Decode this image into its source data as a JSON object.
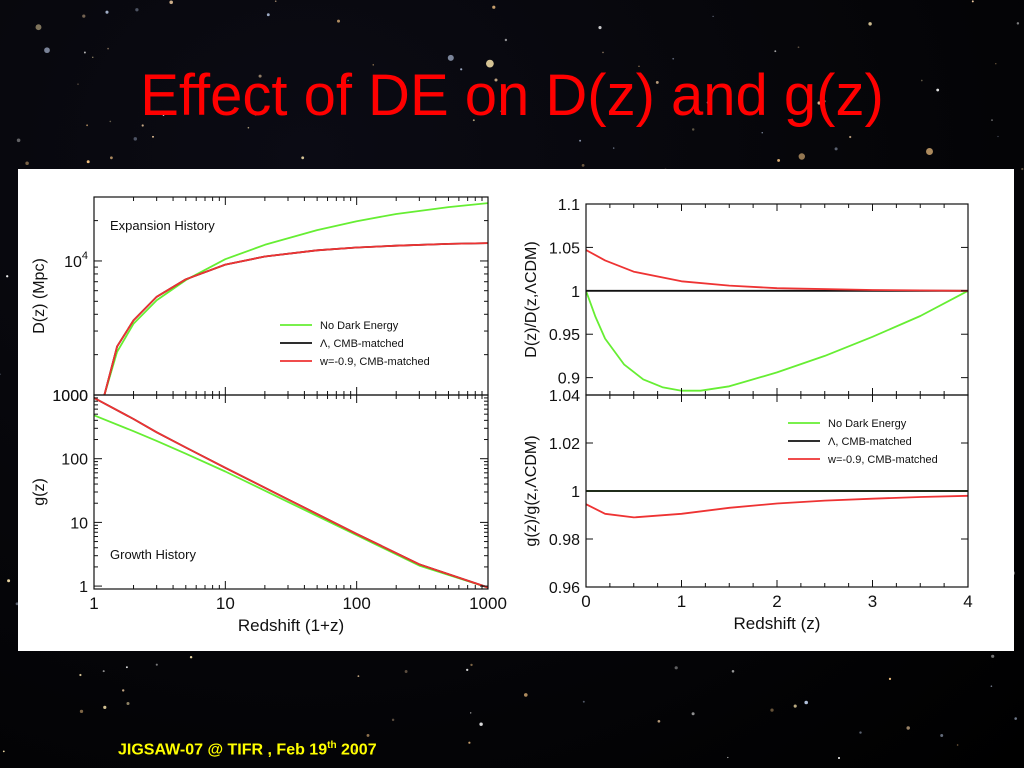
{
  "slide": {
    "title": "Effect of DE on D(z) and g(z)",
    "footer_main": "JIGSAW-07 @ TIFR , Feb 19",
    "footer_sup": "th",
    "footer_year": " 2007",
    "title_color": "#ff0000",
    "footer_color": "#ffff00"
  },
  "chart_data": [
    {
      "id": "expansion",
      "type": "line",
      "annotation": "Expansion History",
      "ylabel": "D(z) (Mpc)",
      "xlabel": "",
      "xscale": "log",
      "yscale": "log",
      "xlim": [
        1,
        1000
      ],
      "ylim": [
        1000,
        30000
      ],
      "yticks": [
        {
          "v": 10000,
          "base": "10",
          "exp": "4"
        },
        {
          "v": 1000,
          "label": "1000"
        }
      ],
      "legend_position": "center-right",
      "series": [
        {
          "name": "No Dark Energy",
          "color": "#66ee33",
          "x": [
            1.2,
            1.5,
            2,
            3,
            5,
            10,
            20,
            50,
            100,
            200,
            500,
            1000
          ],
          "y": [
            1000,
            2100,
            3400,
            5100,
            7200,
            10300,
            13200,
            17000,
            19800,
            22400,
            25200,
            27000
          ]
        },
        {
          "name": "Λ, CMB-matched",
          "color": "#111111",
          "x": [
            1.2,
            1.5,
            2,
            3,
            5,
            10,
            20,
            50,
            100,
            200,
            500,
            1000
          ],
          "y": [
            1000,
            2300,
            3600,
            5400,
            7300,
            9400,
            10800,
            12000,
            12600,
            13000,
            13400,
            13600
          ]
        },
        {
          "name": "w=-0.9, CMB-matched",
          "color": "#ee3333",
          "x": [
            1.2,
            1.5,
            2,
            3,
            5,
            10,
            20,
            50,
            100,
            200,
            500,
            1000
          ],
          "y": [
            1000,
            2300,
            3600,
            5400,
            7300,
            9400,
            10800,
            12000,
            12600,
            13000,
            13400,
            13600
          ]
        }
      ]
    },
    {
      "id": "growth",
      "type": "line",
      "annotation": "Growth History",
      "ylabel": "g(z)",
      "xlabel": "Redshift (1+z)",
      "xscale": "log",
      "yscale": "log",
      "xlim": [
        1,
        1000
      ],
      "ylim": [
        0.9,
        1000
      ],
      "xticks": [
        {
          "v": 1,
          "label": "1"
        },
        {
          "v": 10,
          "label": "10"
        },
        {
          "v": 100,
          "label": "100"
        },
        {
          "v": 1000,
          "label": "1000"
        }
      ],
      "yticks": [
        {
          "v": 1000,
          "label": "1000"
        },
        {
          "v": 100,
          "label": "100"
        },
        {
          "v": 10,
          "label": "10"
        },
        {
          "v": 1,
          "label": "1"
        }
      ],
      "series": [
        {
          "name": "No Dark Energy",
          "color": "#66ee33",
          "x": [
            1,
            2,
            3,
            5,
            10,
            30,
            100,
            300,
            1000
          ],
          "y": [
            480,
            270,
            190,
            120,
            63,
            21,
            6.3,
            2.1,
            0.95
          ]
        },
        {
          "name": "Λ, CMB-matched",
          "color": "#111111",
          "x": [
            1,
            2,
            3,
            5,
            10,
            30,
            100,
            300,
            1000
          ],
          "y": [
            900,
            420,
            260,
            150,
            72,
            23,
            6.6,
            2.2,
            0.95
          ]
        },
        {
          "name": "w=-0.9, CMB-matched",
          "color": "#ee3333",
          "x": [
            1,
            2,
            3,
            5,
            10,
            30,
            100,
            300,
            1000
          ],
          "y": [
            900,
            420,
            260,
            150,
            72,
            23,
            6.6,
            2.2,
            0.95
          ]
        }
      ]
    },
    {
      "id": "d_ratio",
      "type": "line",
      "ylabel": "D(z)/D(z,ΛCDM)",
      "xlabel": "",
      "xscale": "linear",
      "yscale": "linear",
      "xlim": [
        0,
        4
      ],
      "ylim": [
        0.88,
        1.1
      ],
      "yticks": [
        {
          "v": 1.1,
          "label": "1.1"
        },
        {
          "v": 1.05,
          "label": "1.05"
        },
        {
          "v": 1,
          "label": "1"
        },
        {
          "v": 0.95,
          "label": "0.95"
        },
        {
          "v": 0.9,
          "label": "0.9"
        }
      ],
      "series": [
        {
          "name": "No Dark Energy",
          "color": "#66ee33",
          "x": [
            0,
            0.1,
            0.2,
            0.4,
            0.6,
            0.8,
            1.0,
            1.2,
            1.5,
            2.0,
            2.5,
            3.0,
            3.5,
            4.0
          ],
          "y": [
            1.0,
            0.97,
            0.945,
            0.915,
            0.898,
            0.889,
            0.885,
            0.885,
            0.89,
            0.906,
            0.925,
            0.947,
            0.971,
            1.0
          ]
        },
        {
          "name": "Λ, CMB-matched",
          "color": "#111111",
          "x": [
            0,
            4
          ],
          "y": [
            1.0,
            1.0
          ]
        },
        {
          "name": "w=-0.9, CMB-matched",
          "color": "#ee3333",
          "x": [
            0,
            0.2,
            0.5,
            1.0,
            1.5,
            2.0,
            3.0,
            4.0
          ],
          "y": [
            1.047,
            1.035,
            1.022,
            1.011,
            1.006,
            1.003,
            1.001,
            1.0
          ]
        }
      ]
    },
    {
      "id": "g_ratio",
      "type": "line",
      "ylabel": "g(z)/g(z,ΛCDM)",
      "xlabel": "Redshift (z)",
      "xscale": "linear",
      "yscale": "linear",
      "xlim": [
        0,
        4
      ],
      "ylim": [
        0.96,
        1.04
      ],
      "xticks": [
        {
          "v": 0,
          "label": "0"
        },
        {
          "v": 1,
          "label": "1"
        },
        {
          "v": 2,
          "label": "2"
        },
        {
          "v": 3,
          "label": "3"
        },
        {
          "v": 4,
          "label": "4"
        }
      ],
      "yticks": [
        {
          "v": 1.04,
          "label": "1.04"
        },
        {
          "v": 1.02,
          "label": "1.02"
        },
        {
          "v": 1,
          "label": "1"
        },
        {
          "v": 0.98,
          "label": "0.98"
        },
        {
          "v": 0.96,
          "label": "0.96"
        }
      ],
      "legend_position": "top-right",
      "series": [
        {
          "name": "No Dark Energy",
          "color": "#66ee33",
          "x": [
            0,
            4
          ],
          "y": [
            1.0,
            1.0
          ]
        },
        {
          "name": "Λ, CMB-matched",
          "color": "#111111",
          "x": [
            0,
            4
          ],
          "y": [
            1.0,
            1.0
          ]
        },
        {
          "name": "w=-0.9, CMB-matched",
          "color": "#ee3333",
          "x": [
            0,
            0.2,
            0.5,
            1.0,
            1.5,
            2.0,
            2.5,
            3.0,
            3.5,
            4.0
          ],
          "y": [
            0.9945,
            0.9905,
            0.989,
            0.9905,
            0.993,
            0.9948,
            0.996,
            0.9968,
            0.9975,
            0.998
          ]
        }
      ]
    }
  ]
}
